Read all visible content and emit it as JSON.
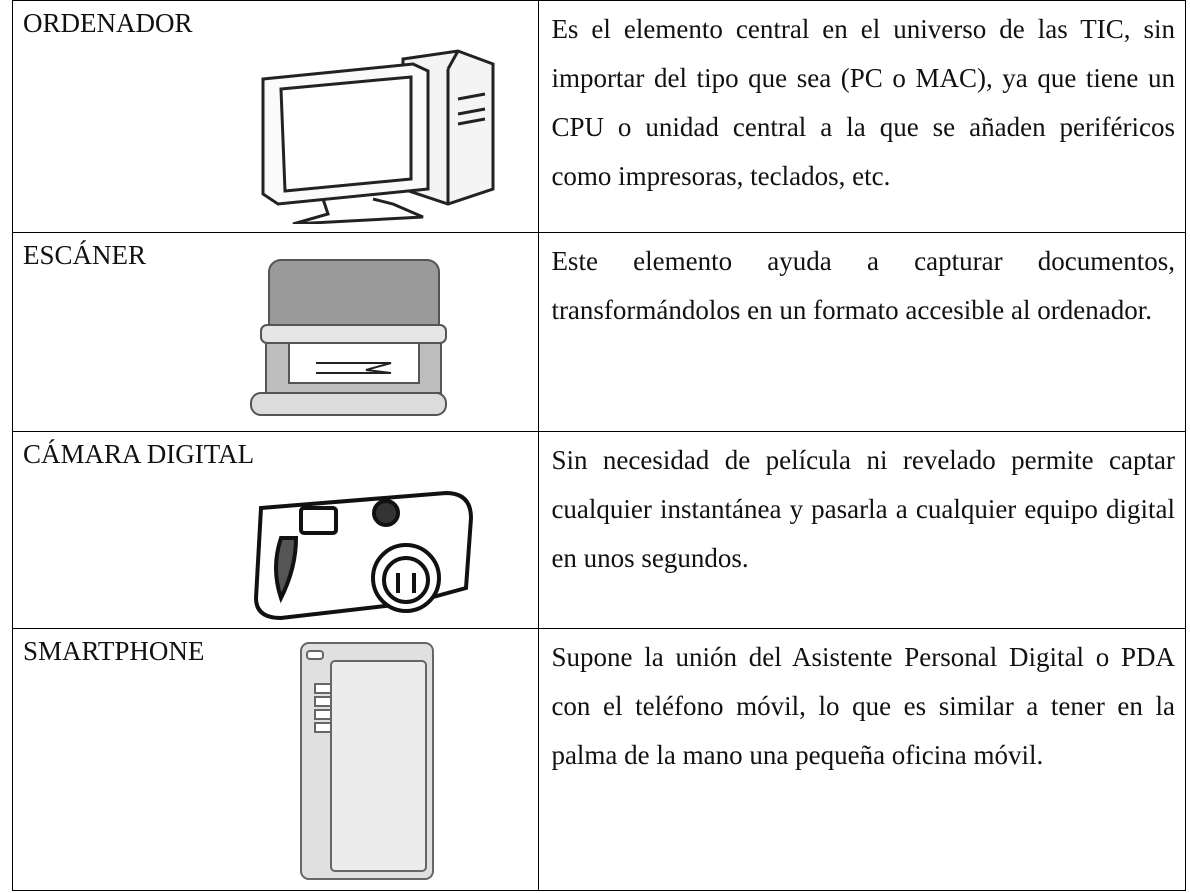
{
  "table": {
    "rows": [
      [
        "ORDENADOR",
        "Es el elemento central en el universo de las TIC, sin importar del tipo que sea (PC o MAC), ya que tiene un CPU o unidad central a la que se añaden periféricos como impresoras, teclados, etc."
      ],
      [
        "ESCÁNER",
        "Este elemento ayuda a capturar documentos, transformándolos en un formato accesible al ordenador."
      ],
      [
        "CÁMARA DIGITAL",
        "Sin necesidad de película ni revelado permite captar cualquier instantánea y pasarla a cualquier equipo digital en unos segundos."
      ],
      [
        "SMARTPHONE",
        "Supone la unión del Asistente Personal Digital o PDA con el teléfono móvil, lo que es similar a tener en la palma de la mano una pequeña oficina móvil."
      ]
    ]
  }
}
